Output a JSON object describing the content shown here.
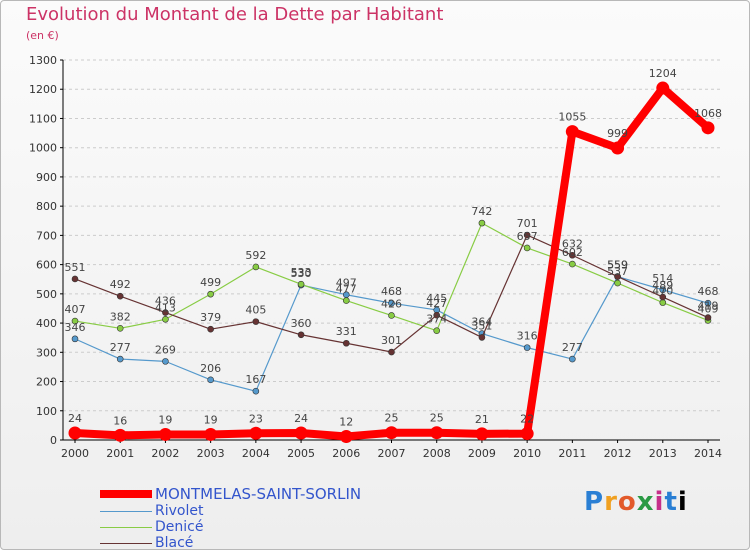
{
  "header": {
    "title": "Evolution du Montant de la Dette par Habitant",
    "unit": "(en €)"
  },
  "logo": {
    "text": "Proxiti",
    "letters": [
      "P",
      "r",
      "o",
      "x",
      "i",
      "t",
      "i"
    ]
  },
  "colors": {
    "main": "#ff0000",
    "rivolet": "#5599cc",
    "denice": "#88cc44",
    "blace": "#663333",
    "title": "#cc3366",
    "legend_text": "#3355cc",
    "grid": "#cccccc"
  },
  "chart_data": {
    "type": "line",
    "title": "Evolution du Montant de la Dette par Habitant",
    "subtitle": "(en €)",
    "xlabel": "",
    "ylabel": "",
    "x": [
      "2000",
      "2001",
      "2002",
      "2003",
      "2004",
      "2005",
      "2006",
      "2007",
      "2008",
      "2009",
      "2010",
      "2011",
      "2012",
      "2013",
      "2014"
    ],
    "yticks": [
      "0",
      "100",
      "200",
      "300",
      "400",
      "500",
      "600",
      "700",
      "800",
      "900",
      "1000",
      "1100",
      "1200",
      "1300"
    ],
    "ylim": [
      0,
      1300
    ],
    "grid": "horizontal dashed",
    "legend_position": "bottom-left",
    "series": [
      {
        "name": "MONTMELAS-SAINT-SORLIN",
        "color": "#ff0000",
        "values": [
          24,
          16,
          19,
          19,
          23,
          24,
          12,
          25,
          25,
          21,
          22,
          1055,
          999,
          1204,
          1068
        ],
        "labels": [
          "24",
          "16",
          "19",
          "19",
          "23",
          "24",
          "12",
          "25",
          "25",
          "21",
          "22",
          "1055",
          "999",
          "1204",
          "1068"
        ]
      },
      {
        "name": "Rivolet",
        "color": "#5599cc",
        "values": [
          346,
          277,
          269,
          206,
          167,
          530,
          497,
          468,
          445,
          364,
          316,
          277,
          559,
          514,
          468
        ],
        "labels": [
          "346",
          "277",
          "269",
          "206",
          "167",
          "530",
          "497",
          "468",
          "445",
          "364",
          "316",
          "277",
          "559",
          "514",
          "468"
        ]
      },
      {
        "name": "Denicé",
        "color": "#88cc44",
        "values": [
          407,
          382,
          413,
          499,
          592,
          533,
          477,
          426,
          374,
          742,
          657,
          602,
          537,
          470,
          409
        ],
        "labels": [
          "407",
          "382",
          "413",
          "499",
          "592",
          "533",
          "477",
          "426",
          "374",
          "742",
          "657",
          "602",
          "537",
          "470",
          "409"
        ]
      },
      {
        "name": "Blacé",
        "color": "#663333",
        "values": [
          551,
          492,
          436,
          379,
          405,
          360,
          331,
          301,
          427,
          351,
          701,
          632,
          559,
          489,
          419
        ],
        "labels": [
          "551",
          "492",
          "436",
          "379",
          "405",
          "360",
          "331",
          "301",
          "427",
          "351",
          "701",
          "632",
          "559",
          "489",
          "419"
        ]
      }
    ]
  }
}
